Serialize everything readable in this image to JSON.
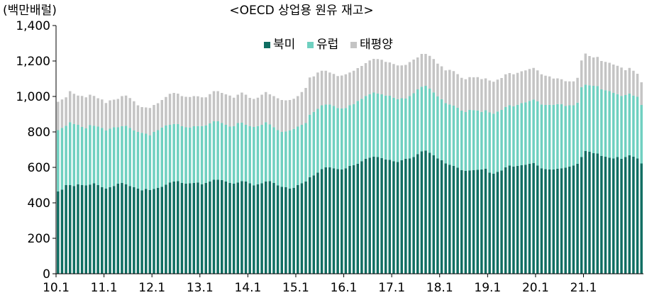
{
  "chart_data": {
    "type": "bar",
    "stacked": true,
    "title": "<OECD 상업용 원유 재고>",
    "unit_label": "(백만배럴)",
    "xlabel": "",
    "ylabel": "",
    "ylim": [
      0,
      1400
    ],
    "yticks": [
      "0",
      "200",
      "400",
      "600",
      "800",
      "1,000",
      "1,200",
      "1,400"
    ],
    "xticks": [
      "10.1",
      "11.1",
      "12.1",
      "13.1",
      "14.1",
      "15.1",
      "16.1",
      "17.1",
      "18.1",
      "19.1",
      "20.1",
      "21.1"
    ],
    "grid": false,
    "legend_position": "top-center",
    "colors": {
      "북미": "#0f6e62",
      "유럽": "#6fd0c0",
      "태평양": "#c4c4c4"
    },
    "series": [
      {
        "name": "북미",
        "values": [
          465,
          475,
          500,
          500,
          495,
          505,
          500,
          498,
          503,
          510,
          500,
          488,
          480,
          488,
          495,
          508,
          512,
          505,
          495,
          488,
          480,
          470,
          478,
          472,
          478,
          485,
          490,
          502,
          515,
          520,
          522,
          512,
          508,
          510,
          512,
          515,
          505,
          512,
          520,
          530,
          530,
          528,
          520,
          512,
          508,
          515,
          522,
          520,
          510,
          498,
          505,
          510,
          520,
          522,
          512,
          498,
          490,
          488,
          480,
          485,
          500,
          510,
          520,
          545,
          555,
          570,
          590,
          600,
          600,
          595,
          590,
          588,
          595,
          608,
          612,
          620,
          635,
          648,
          655,
          660,
          658,
          652,
          645,
          642,
          635,
          630,
          640,
          648,
          650,
          658,
          675,
          690,
          695,
          682,
          668,
          650,
          640,
          622,
          615,
          608,
          598,
          585,
          580,
          582,
          585,
          586,
          588,
          592,
          570,
          565,
          575,
          582,
          600,
          610,
          605,
          608,
          612,
          615,
          620,
          625,
          610,
          595,
          590,
          588,
          588,
          592,
          595,
          598,
          605,
          610,
          620,
          658,
          692,
          688,
          680,
          678,
          665,
          660,
          655,
          650,
          658,
          648,
          658,
          668,
          660,
          650,
          622
        ]
      },
      {
        "name": "유럽",
        "values": [
          345,
          348,
          335,
          355,
          350,
          335,
          328,
          322,
          335,
          325,
          330,
          335,
          328,
          330,
          332,
          318,
          320,
          330,
          328,
          320,
          320,
          325,
          312,
          308,
          322,
          325,
          335,
          335,
          325,
          325,
          322,
          320,
          318,
          315,
          320,
          318,
          328,
          325,
          328,
          330,
          330,
          322,
          320,
          318,
          325,
          335,
          330,
          320,
          322,
          330,
          328,
          330,
          335,
          320,
          315,
          312,
          310,
          315,
          328,
          332,
          330,
          330,
          330,
          352,
          358,
          360,
          360,
          355,
          355,
          352,
          345,
          345,
          340,
          342,
          345,
          355,
          352,
          355,
          358,
          362,
          358,
          360,
          360,
          362,
          358,
          355,
          350,
          340,
          352,
          360,
          365,
          365,
          365,
          362,
          355,
          350,
          345,
          340,
          340,
          340,
          338,
          335,
          332,
          342,
          338,
          335,
          325,
          330,
          340,
          338,
          340,
          342,
          340,
          340,
          340,
          345,
          350,
          352,
          355,
          358,
          362,
          360,
          362,
          365,
          365,
          365,
          362,
          348,
          345,
          340,
          345,
          395,
          375,
          375,
          380,
          380,
          375,
          375,
          375,
          370,
          355,
          355,
          350,
          348,
          345,
          348,
          330
        ]
      },
      {
        "name": "태평양",
        "values": [
          160,
          160,
          160,
          175,
          170,
          165,
          175,
          175,
          172,
          168,
          160,
          160,
          155,
          160,
          155,
          160,
          170,
          170,
          168,
          165,
          150,
          145,
          148,
          155,
          152,
          152,
          155,
          160,
          175,
          175,
          172,
          170,
          172,
          172,
          170,
          168,
          162,
          158,
          165,
          170,
          170,
          170,
          172,
          175,
          160,
          160,
          170,
          170,
          160,
          158,
          160,
          170,
          170,
          170,
          175,
          180,
          180,
          175,
          172,
          170,
          172,
          185,
          198,
          210,
          200,
          205,
          195,
          190,
          180,
          180,
          180,
          185,
          190,
          185,
          188,
          185,
          185,
          185,
          190,
          190,
          195,
          195,
          190,
          188,
          190,
          190,
          185,
          190,
          192,
          190,
          180,
          185,
          180,
          185,
          188,
          185,
          185,
          185,
          195,
          195,
          190,
          185,
          185,
          185,
          185,
          188,
          185,
          180,
          180,
          180,
          180,
          180,
          185,
          182,
          180,
          180,
          180,
          180,
          180,
          178,
          175,
          170,
          165,
          160,
          148,
          145,
          140,
          140,
          135,
          135,
          140,
          150,
          175,
          165,
          160,
          165,
          160,
          160,
          160,
          160,
          160,
          160,
          140,
          145,
          140,
          130,
          128
        ]
      }
    ]
  }
}
